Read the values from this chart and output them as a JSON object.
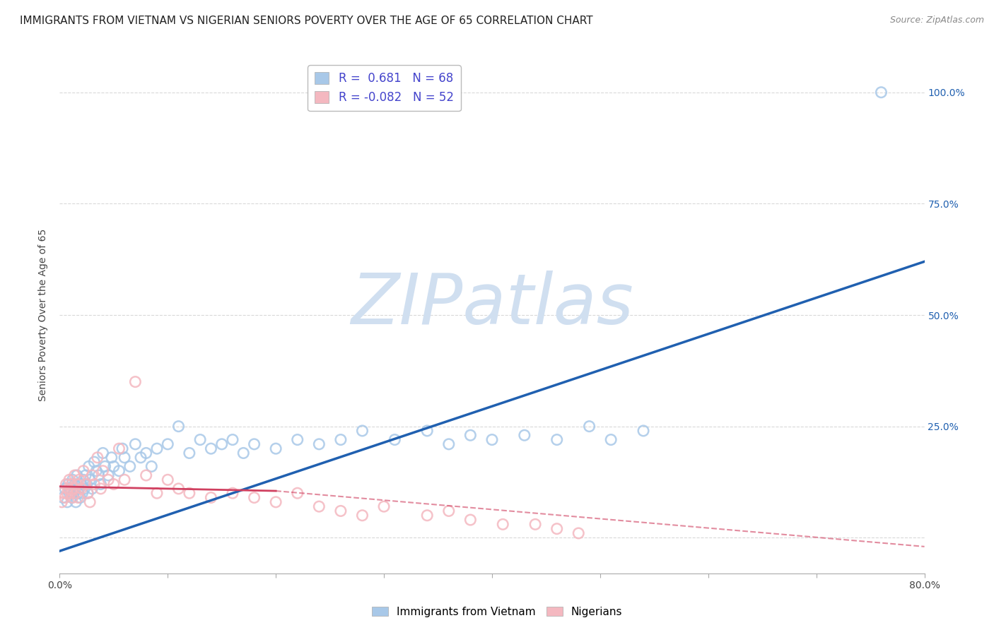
{
  "title": "IMMIGRANTS FROM VIETNAM VS NIGERIAN SENIORS POVERTY OVER THE AGE OF 65 CORRELATION CHART",
  "source": "Source: ZipAtlas.com",
  "ylabel": "Seniors Poverty Over the Age of 65",
  "xlim": [
    0.0,
    0.8
  ],
  "ylim": [
    -0.08,
    1.08
  ],
  "xticks": [
    0.0,
    0.1,
    0.2,
    0.3,
    0.4,
    0.5,
    0.6,
    0.7,
    0.8
  ],
  "xticklabels": [
    "0.0%",
    "",
    "",
    "",
    "",
    "",
    "",
    "",
    "80.0%"
  ],
  "yticks_right": [
    0.0,
    0.25,
    0.5,
    0.75,
    1.0
  ],
  "ytick_right_labels": [
    "",
    "25.0%",
    "50.0%",
    "75.0%",
    "100.0%"
  ],
  "legend_r1": "R =  0.681   N = 68",
  "legend_r2": "R = -0.082   N = 52",
  "blue_color": "#a8c8e8",
  "pink_color": "#f4b8c0",
  "blue_line_color": "#2060b0",
  "pink_line_color": "#d04060",
  "watermark": "ZIPatlas",
  "watermark_color": "#d0dff0",
  "blue_scatter_x": [
    0.003,
    0.005,
    0.007,
    0.008,
    0.009,
    0.01,
    0.011,
    0.012,
    0.013,
    0.014,
    0.015,
    0.016,
    0.017,
    0.018,
    0.019,
    0.02,
    0.021,
    0.022,
    0.023,
    0.024,
    0.025,
    0.026,
    0.027,
    0.028,
    0.03,
    0.032,
    0.034,
    0.036,
    0.038,
    0.04,
    0.042,
    0.045,
    0.048,
    0.05,
    0.055,
    0.058,
    0.06,
    0.065,
    0.07,
    0.075,
    0.08,
    0.085,
    0.09,
    0.1,
    0.11,
    0.12,
    0.13,
    0.14,
    0.15,
    0.16,
    0.17,
    0.18,
    0.2,
    0.22,
    0.24,
    0.26,
    0.28,
    0.31,
    0.34,
    0.36,
    0.38,
    0.4,
    0.43,
    0.46,
    0.49,
    0.51,
    0.54,
    0.76
  ],
  "blue_scatter_y": [
    0.09,
    0.11,
    0.08,
    0.12,
    0.1,
    0.11,
    0.09,
    0.13,
    0.1,
    0.12,
    0.08,
    0.14,
    0.1,
    0.11,
    0.09,
    0.12,
    0.1,
    0.13,
    0.11,
    0.14,
    0.12,
    0.1,
    0.16,
    0.13,
    0.11,
    0.17,
    0.15,
    0.14,
    0.12,
    0.19,
    0.16,
    0.14,
    0.18,
    0.16,
    0.15,
    0.2,
    0.18,
    0.16,
    0.21,
    0.18,
    0.19,
    0.16,
    0.2,
    0.21,
    0.25,
    0.19,
    0.22,
    0.2,
    0.21,
    0.22,
    0.19,
    0.21,
    0.2,
    0.22,
    0.21,
    0.22,
    0.24,
    0.22,
    0.24,
    0.21,
    0.23,
    0.22,
    0.23,
    0.22,
    0.25,
    0.22,
    0.24,
    1.0
  ],
  "pink_scatter_x": [
    0.002,
    0.003,
    0.005,
    0.006,
    0.007,
    0.008,
    0.009,
    0.01,
    0.011,
    0.012,
    0.013,
    0.014,
    0.015,
    0.016,
    0.017,
    0.018,
    0.02,
    0.022,
    0.024,
    0.026,
    0.028,
    0.03,
    0.032,
    0.035,
    0.038,
    0.04,
    0.045,
    0.05,
    0.055,
    0.06,
    0.07,
    0.08,
    0.09,
    0.1,
    0.11,
    0.12,
    0.14,
    0.16,
    0.18,
    0.2,
    0.22,
    0.24,
    0.26,
    0.28,
    0.3,
    0.34,
    0.36,
    0.38,
    0.41,
    0.44,
    0.46,
    0.48
  ],
  "pink_scatter_y": [
    0.08,
    0.1,
    0.09,
    0.12,
    0.1,
    0.11,
    0.13,
    0.1,
    0.12,
    0.09,
    0.11,
    0.14,
    0.1,
    0.12,
    0.09,
    0.13,
    0.11,
    0.15,
    0.12,
    0.1,
    0.08,
    0.14,
    0.12,
    0.18,
    0.11,
    0.15,
    0.13,
    0.12,
    0.2,
    0.13,
    0.35,
    0.14,
    0.1,
    0.13,
    0.11,
    0.1,
    0.09,
    0.1,
    0.09,
    0.08,
    0.1,
    0.07,
    0.06,
    0.05,
    0.07,
    0.05,
    0.06,
    0.04,
    0.03,
    0.03,
    0.02,
    0.01
  ],
  "blue_trend_x0": 0.0,
  "blue_trend_y0": -0.03,
  "blue_trend_x1": 0.8,
  "blue_trend_y1": 0.62,
  "pink_trend_solid_x0": 0.0,
  "pink_trend_solid_y0": 0.115,
  "pink_trend_solid_x1": 0.2,
  "pink_trend_solid_y1": 0.105,
  "pink_trend_dashed_x0": 0.2,
  "pink_trend_dashed_y0": 0.105,
  "pink_trend_dashed_x1": 0.8,
  "pink_trend_dashed_y1": -0.02,
  "grid_color": "#d0d0d0",
  "background_color": "#ffffff",
  "title_fontsize": 11,
  "label_fontsize": 10,
  "tick_fontsize": 10,
  "legend_fontsize": 12,
  "scatter_size": 110
}
